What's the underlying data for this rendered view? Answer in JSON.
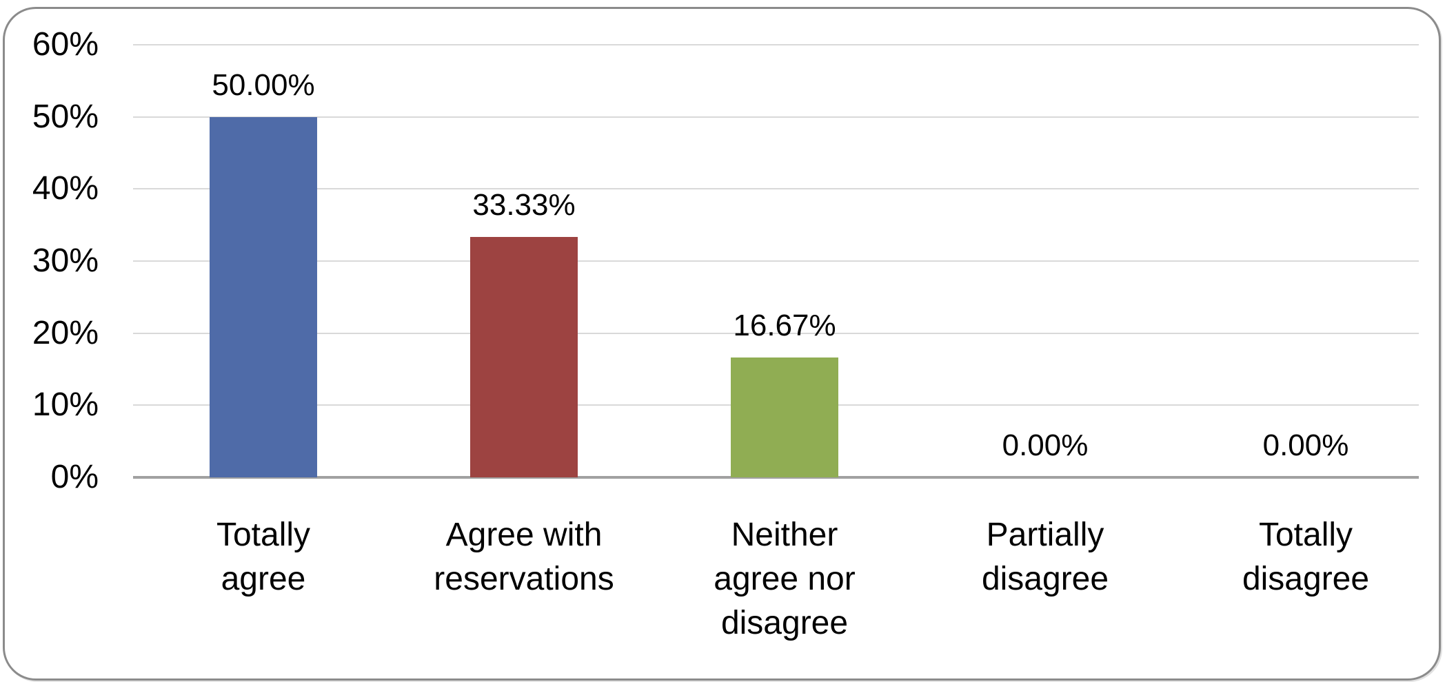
{
  "chart_data": {
    "type": "bar",
    "title": "",
    "xlabel": "",
    "ylabel": "",
    "categories": [
      "Totally agree",
      "Agree with reservations",
      "Neither agree nor disagree",
      "Partially disagree",
      "Totally disagree"
    ],
    "category_lines": [
      [
        "Totally",
        "agree"
      ],
      [
        "Agree with",
        "reservations"
      ],
      [
        "Neither",
        "agree nor",
        "disagree"
      ],
      [
        "Partially",
        "disagree"
      ],
      [
        "Totally",
        "disagree"
      ]
    ],
    "values": [
      50.0,
      33.33,
      16.67,
      0.0,
      0.0
    ],
    "data_labels": [
      "50.00%",
      "33.33%",
      "16.67%",
      "0.00%",
      "0.00%"
    ],
    "bar_colors": [
      "#4f6ba8",
      "#9d4341",
      "#90ad53",
      null,
      null
    ],
    "y_ticks": [
      {
        "label": "60%",
        "value": 60
      },
      {
        "label": "50%",
        "value": 50
      },
      {
        "label": "40%",
        "value": 40
      },
      {
        "label": "30%",
        "value": 30
      },
      {
        "label": "20%",
        "value": 20
      },
      {
        "label": "10%",
        "value": 10
      },
      {
        "label": "0%",
        "value": 0
      }
    ],
    "ylim": [
      0,
      60
    ],
    "grid": true,
    "legend": false,
    "colors": {
      "gridline": "#d9d9d9",
      "axis_line": "#a1a1a1",
      "frame_border": "#8b8b8b",
      "text": "#000000",
      "background": "#ffffff"
    }
  }
}
